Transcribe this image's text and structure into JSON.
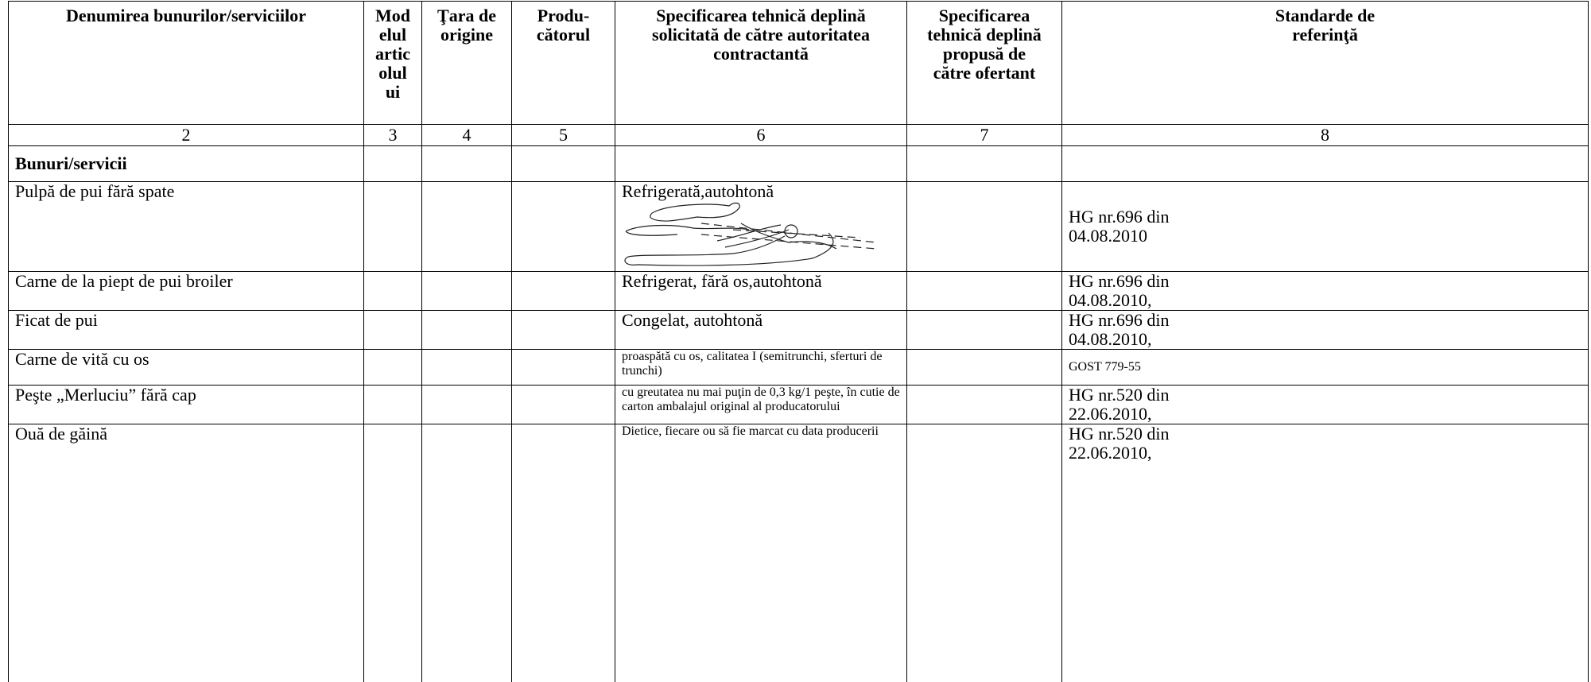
{
  "table": {
    "header": [
      "Denumirea bunurilor/serviciilor",
      "Mod\nelul\nartic\nolul\nui",
      "Ţara de\norigine",
      "Produ-\ncătorul",
      "Specificarea tehnică deplină\nsolicitată de către autoritatea\ncontractantă",
      "Specificarea\ntehnică deplină\npropusă de\ncătre ofertant",
      "Standarde de\nreferinţă"
    ],
    "column_numbers": [
      2,
      3,
      4,
      5,
      6,
      7,
      8
    ],
    "section": "Bunuri/servicii",
    "rows": [
      {
        "name": "Pulpă de pui fără spate",
        "spec": "Refrigerată,autohtonă",
        "standard": "HG nr.696 din 04.08.2010"
      },
      {
        "name": "Carne de la piept de pui broiler",
        "spec": "Refrigerat, fără os,autohtonă",
        "standard": "HG nr.696 din 04.08.2010,"
      },
      {
        "name": "Ficat de pui",
        "spec": "Congelat, autohtonă",
        "standard": "HG nr.696 din 04.08.2010,"
      },
      {
        "name": "Carne de vită cu os",
        "spec": "proaspătă cu os, calitatea  I (semitrunchi, sferturi de trunchi)",
        "standard": "GOST 779-55"
      },
      {
        "name": "Peşte „Merluciu” fără cap",
        "spec": "cu greutatea nu mai puţin de 0,3 kg/1 peşte, în cutie de carton ambalajul original al producatorului",
        "standard": "HG nr.520 din 22.06.2010,"
      },
      {
        "name": "Ouă de găină",
        "spec": "Dietice,  fiecare ou să fie marcat cu data producerii",
        "standard": "HG nr.520 din 22.06.2010,"
      }
    ]
  }
}
